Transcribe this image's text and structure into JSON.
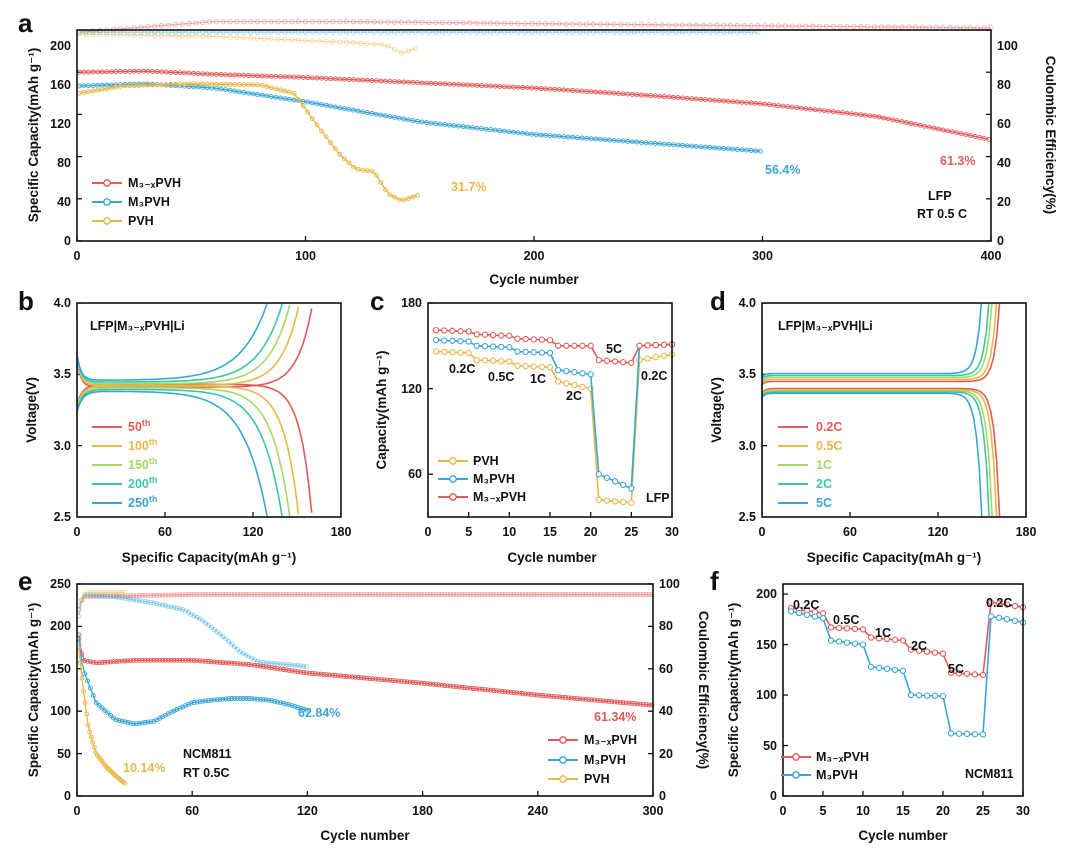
{
  "colors": {
    "red": "#e35a5a",
    "blue": "#3aa6d6",
    "gold": "#e9b84a",
    "c_olive": "#c9c34a",
    "c_lgreen": "#a8d866",
    "c_teal": "#3cc8a6"
  },
  "chart_data": [
    {
      "id": "a",
      "panel_label": "a",
      "type": "line",
      "xlabel": "Cycle number",
      "ylabel": "Specific Capacity(mAh g⁻¹)",
      "y2label": "Coulombic Efficiency(%)",
      "xlim": [
        0,
        400
      ],
      "ylim": [
        0,
        200
      ],
      "y2lim": [
        0,
        100
      ],
      "xticks": [
        "0",
        "100",
        "200",
        "300",
        "400"
      ],
      "yticks": [
        "0",
        "40",
        "80",
        "120",
        "160",
        "200"
      ],
      "y2ticks": [
        "0",
        "20",
        "40",
        "60",
        "80",
        "100"
      ],
      "series": [
        {
          "name": "M3-xPVH",
          "color": "red",
          "x": [
            1,
            30,
            60,
            100,
            150,
            200,
            250,
            300,
            350,
            400
          ],
          "y": [
            160,
            161,
            158,
            155,
            150,
            145,
            138,
            130,
            118,
            96
          ]
        },
        {
          "name": "M3PVH",
          "color": "blue",
          "x": [
            1,
            30,
            60,
            100,
            150,
            200,
            250,
            300
          ],
          "y": [
            147,
            149,
            145,
            132,
            113,
            101,
            93,
            85
          ]
        },
        {
          "name": "PVH",
          "color": "gold",
          "x": [
            1,
            20,
            50,
            80,
            95,
            105,
            115,
            122,
            130,
            136,
            142,
            150
          ],
          "y": [
            140,
            147,
            149,
            148,
            140,
            110,
            82,
            68,
            66,
            45,
            38,
            44
          ]
        }
      ],
      "ce_series": [
        {
          "name": "M3-xPVH",
          "color": "red",
          "x": [
            1,
            60,
            120,
            200,
            300,
            400
          ],
          "y": [
            99,
            104,
            104,
            103,
            102,
            101
          ]
        },
        {
          "name": "M3PVH",
          "color": "blue",
          "x": [
            1,
            100,
            200,
            300
          ],
          "y": [
            99,
            99,
            99,
            99
          ]
        },
        {
          "name": "PVH",
          "color": "gold",
          "x": [
            1,
            60,
            100,
            120,
            135,
            142,
            150
          ],
          "y": [
            98,
            97,
            95,
            94,
            93,
            89,
            92
          ]
        }
      ],
      "annotations": {
        "red_pct": "61.3%",
        "blue_pct": "56.4%",
        "gold_pct": "31.7%",
        "cell": "LFP",
        "cond": "RT 0.5 C"
      },
      "legend": [
        "M₃₋ₓPVH",
        "M₃PVH",
        "PVH"
      ]
    },
    {
      "id": "b",
      "panel_label": "b",
      "type": "line",
      "title": "LFP|M₃₋ₓPVH|Li",
      "xlabel": "Specific Capacity(mAh g⁻¹)",
      "ylabel": "Voltage(V)",
      "xlim": [
        0,
        180
      ],
      "ylim": [
        2.5,
        4.0
      ],
      "xticks": [
        "0",
        "60",
        "120",
        "180"
      ],
      "yticks": [
        "2.5",
        "3.0",
        "3.5",
        "4.0"
      ],
      "series": [
        {
          "name": "50th",
          "color": "red",
          "capacity": 160
        },
        {
          "name": "100th",
          "color": "gold",
          "capacity": 151
        },
        {
          "name": "150th",
          "color": "c_lgreen",
          "capacity": 145
        },
        {
          "name": "200th",
          "color": "c_teal",
          "capacity": 140
        },
        {
          "name": "250th",
          "color": "blue",
          "capacity": 130
        }
      ],
      "legend_base": [
        "50",
        "100",
        "150",
        "200",
        "250"
      ],
      "legend_sup": "th"
    },
    {
      "id": "c",
      "panel_label": "c",
      "type": "line",
      "xlabel": "Cycle number",
      "ylabel": "Capacity(mAh g⁻¹)",
      "xlim": [
        0,
        30
      ],
      "ylim": [
        30,
        180
      ],
      "xticks": [
        "0",
        "5",
        "10",
        "15",
        "20",
        "25",
        "30"
      ],
      "yticks": [
        "60",
        "120",
        "180"
      ],
      "series": [
        {
          "name": "PVH",
          "color": "gold",
          "x": [
            1,
            5,
            6,
            10,
            11,
            15,
            16,
            20,
            21,
            25,
            26,
            30
          ],
          "y": [
            146,
            145,
            140,
            139,
            136,
            135,
            125,
            120,
            42,
            40,
            140,
            144
          ]
        },
        {
          "name": "M3PVH",
          "color": "blue",
          "x": [
            1,
            5,
            6,
            10,
            11,
            15,
            16,
            20,
            21,
            25,
            26,
            30
          ],
          "y": [
            154,
            153,
            150,
            149,
            146,
            145,
            133,
            130,
            60,
            50,
            150,
            151
          ]
        },
        {
          "name": "M3-xPVH",
          "color": "red",
          "x": [
            1,
            5,
            6,
            10,
            11,
            15,
            16,
            20,
            21,
            25,
            26,
            30
          ],
          "y": [
            161,
            160,
            158,
            157,
            155,
            154,
            150,
            150,
            140,
            138,
            150,
            151
          ]
        }
      ],
      "rate_labels": [
        "0.2C",
        "0.5C",
        "1C",
        "2C",
        "5C",
        "0.2C"
      ],
      "legend": [
        "PVH",
        "M₃PVH",
        "M₃₋ₓPVH"
      ],
      "note": "LFP"
    },
    {
      "id": "d",
      "panel_label": "d",
      "type": "line",
      "title": "LFP|M₃₋ₓPVH|Li",
      "xlabel": "Specific Capacity(mAh g⁻¹)",
      "ylabel": "Voltage(V)",
      "xlim": [
        0,
        180
      ],
      "ylim": [
        2.5,
        4.0
      ],
      "xticks": [
        "0",
        "60",
        "120",
        "180"
      ],
      "yticks": [
        "2.5",
        "3.0",
        "3.5",
        "4.0"
      ],
      "series": [
        {
          "name": "0.2C",
          "color": "red",
          "capacity": 162
        },
        {
          "name": "0.5C",
          "color": "gold",
          "capacity": 160
        },
        {
          "name": "1C",
          "color": "c_lgreen",
          "capacity": 157
        },
        {
          "name": "2C",
          "color": "c_teal",
          "capacity": 155
        },
        {
          "name": "5C",
          "color": "blue",
          "capacity": 150
        }
      ]
    },
    {
      "id": "e",
      "panel_label": "e",
      "type": "line",
      "xlabel": "Cycle number",
      "ylabel": "Specific Capacity(mAh g⁻¹)",
      "y2label": "Coulombic Efficiency(%)",
      "xlim": [
        0,
        300
      ],
      "ylim": [
        0,
        250
      ],
      "y2lim": [
        0,
        100
      ],
      "xticks": [
        "0",
        "60",
        "120",
        "180",
        "240",
        "300"
      ],
      "yticks": [
        "0",
        "50",
        "100",
        "150",
        "200",
        "250"
      ],
      "y2ticks": [
        "0",
        "20",
        "40",
        "60",
        "80",
        "100"
      ],
      "series": [
        {
          "name": "M3-xPVH",
          "color": "red",
          "x": [
            1,
            3,
            10,
            30,
            60,
            90,
            120,
            180,
            240,
            300
          ],
          "y": [
            190,
            160,
            157,
            160,
            160,
            155,
            145,
            133,
            119,
            107
          ]
        },
        {
          "name": "M3PVH",
          "color": "blue",
          "x": [
            1,
            3,
            10,
            20,
            30,
            40,
            50,
            60,
            70,
            80,
            90,
            100,
            110,
            120
          ],
          "y": [
            185,
            150,
            110,
            90,
            85,
            88,
            100,
            110,
            113,
            115,
            115,
            113,
            108,
            101
          ]
        },
        {
          "name": "PVH",
          "color": "gold",
          "x": [
            1,
            3,
            6,
            10,
            15,
            20,
            25
          ],
          "y": [
            175,
            130,
            80,
            50,
            35,
            24,
            15
          ]
        }
      ],
      "ce_series": [
        {
          "name": "M3-xPVH",
          "color": "red",
          "x": [
            1,
            3,
            60,
            150,
            300
          ],
          "y": [
            88,
            94,
            95,
            95,
            95
          ]
        },
        {
          "name": "M3PVH",
          "color": "blue",
          "x": [
            1,
            3,
            20,
            40,
            55,
            65,
            75,
            85,
            95,
            110,
            120
          ],
          "y": [
            85,
            95,
            94,
            91,
            88,
            83,
            76,
            68,
            63,
            62,
            61
          ]
        },
        {
          "name": "PVH",
          "color": "gold",
          "x": [
            1,
            5,
            10,
            15,
            20,
            25
          ],
          "y": [
            90,
            96,
            96,
            96,
            96,
            96
          ]
        }
      ],
      "annotations": {
        "red_pct": "61.34%",
        "blue_pct": "62.84%",
        "gold_pct": "10.14%",
        "cell": "NCM811",
        "cond": "RT 0.5C"
      },
      "legend": [
        "M₃₋ₓPVH",
        "M₃PVH",
        "PVH"
      ]
    },
    {
      "id": "f",
      "panel_label": "f",
      "type": "line",
      "xlabel": "Cycle number",
      "ylabel": "Specific Capacity(mAh g⁻¹)",
      "xlim": [
        0,
        30
      ],
      "ylim": [
        0,
        210
      ],
      "xticks": [
        "0",
        "5",
        "10",
        "15",
        "20",
        "25",
        "30"
      ],
      "yticks": [
        "0",
        "50",
        "100",
        "150",
        "200"
      ],
      "series": [
        {
          "name": "M3-xPVH",
          "color": "red",
          "x": [
            1,
            5,
            6,
            10,
            11,
            15,
            16,
            20,
            21,
            25,
            26,
            30
          ],
          "y": [
            186,
            181,
            167,
            165,
            157,
            154,
            145,
            141,
            122,
            120,
            192,
            187
          ]
        },
        {
          "name": "M3PVH",
          "color": "blue",
          "x": [
            1,
            5,
            6,
            10,
            11,
            15,
            16,
            20,
            21,
            25,
            26,
            30
          ],
          "y": [
            183,
            176,
            154,
            150,
            128,
            124,
            100,
            99,
            62,
            61,
            178,
            172
          ]
        }
      ],
      "rate_labels": [
        "0.2C",
        "0.5C",
        "1C",
        "2C",
        "5C",
        "0.2C"
      ],
      "legend": [
        "M₃₋ₓPVH",
        "M₃PVH"
      ],
      "note": "NCM811"
    }
  ]
}
